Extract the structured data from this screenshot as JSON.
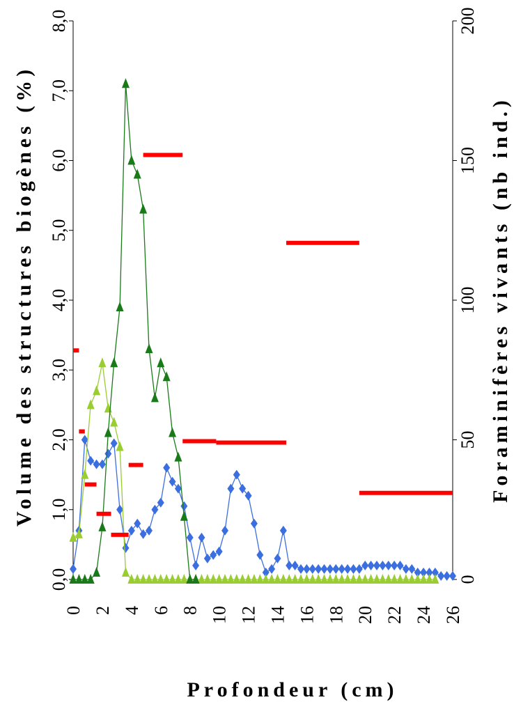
{
  "chart_data": {
    "type": "line",
    "orientation": "rotated-90-clockwise",
    "title": "",
    "x_axis": {
      "label": "Profondeur (cm)",
      "range": [
        0,
        26
      ],
      "ticks": [
        "0",
        "2",
        "4",
        "6",
        "8",
        "10",
        "12",
        "14",
        "16",
        "18",
        "20",
        "22",
        "24",
        "26"
      ]
    },
    "y_axis_left": {
      "label": "Volume des structures biogènes (%)",
      "range": [
        0,
        8
      ],
      "ticks": [
        "0,0",
        "1,0",
        "2,0",
        "3,0",
        "4,0",
        "5,0",
        "6,0",
        "7,0",
        "8,0"
      ]
    },
    "y_axis_right": {
      "label": "Foraminifères vivants (nb ind.)",
      "range": [
        0,
        200
      ],
      "ticks": [
        "0",
        "50",
        "100",
        "150",
        "200"
      ]
    },
    "series": [
      {
        "color": "#3b6fe0",
        "marker": "diamond",
        "axis": "left",
        "x": [
          0.0,
          0.4,
          0.8,
          1.2,
          1.6,
          2.0,
          2.4,
          2.8,
          3.2,
          3.6,
          4.0,
          4.4,
          4.8,
          5.2,
          5.6,
          6.0,
          6.4,
          6.8,
          7.2,
          7.6,
          8.0,
          8.4,
          8.8,
          9.2,
          9.6,
          10.0,
          10.4,
          10.8,
          11.2,
          11.6,
          12.0,
          12.4,
          12.8,
          13.2,
          13.6,
          14.0,
          14.4,
          14.8,
          15.2,
          15.6,
          16.0,
          16.4,
          16.8,
          17.2,
          17.6,
          18.0,
          18.4,
          18.8,
          19.2,
          19.6,
          20.0,
          20.4,
          20.8,
          21.2,
          21.6,
          22.0,
          22.4,
          22.8,
          23.2,
          23.6,
          24.0,
          24.4,
          24.8,
          25.2,
          25.6,
          26.0
        ],
        "values": [
          0.15,
          0.7,
          2.0,
          1.7,
          1.65,
          1.65,
          1.8,
          1.95,
          1.0,
          0.45,
          0.7,
          0.8,
          0.65,
          0.7,
          1.0,
          1.1,
          1.6,
          1.4,
          1.3,
          1.05,
          0.6,
          0.2,
          0.6,
          0.3,
          0.35,
          0.4,
          0.7,
          1.3,
          1.5,
          1.3,
          1.2,
          0.8,
          0.35,
          0.1,
          0.15,
          0.3,
          0.7,
          0.2,
          0.2,
          0.15,
          0.15,
          0.15,
          0.15,
          0.15,
          0.15,
          0.15,
          0.15,
          0.15,
          0.15,
          0.15,
          0.2,
          0.2,
          0.2,
          0.2,
          0.2,
          0.2,
          0.2,
          0.15,
          0.15,
          0.1,
          0.1,
          0.1,
          0.1,
          0.05,
          0.05,
          0.05
        ]
      },
      {
        "color": "#9acd32",
        "marker": "triangle",
        "axis": "left",
        "x": [
          0.0,
          0.4,
          0.8,
          1.2,
          1.6,
          2.0,
          2.4,
          2.8,
          3.2,
          3.6,
          4.0,
          4.4,
          4.8,
          5.2,
          5.6,
          6.0,
          6.4,
          6.8,
          7.2,
          7.6,
          8.0,
          8.4,
          8.8,
          9.2,
          9.6,
          10.0,
          10.4,
          10.8,
          11.2,
          11.6,
          12.0,
          12.4,
          12.8,
          13.2,
          13.6,
          14.0,
          14.4,
          14.8,
          15.2,
          15.6,
          16.0,
          16.4,
          16.8,
          17.2,
          17.6,
          18.0,
          18.4,
          18.8,
          19.2,
          19.6,
          20.0,
          20.4,
          20.8,
          21.2,
          21.6,
          22.0,
          22.4,
          22.8,
          23.2,
          23.6,
          24.0,
          24.4,
          24.8
        ],
        "values": [
          0.6,
          0.65,
          1.5,
          2.5,
          2.7,
          3.1,
          2.45,
          2.25,
          1.9,
          0.1,
          0.0,
          0.0,
          0.0,
          0.0,
          0.0,
          0.0,
          0.0,
          0.0,
          0.0,
          0.0,
          0.0,
          0.0,
          0.0,
          0.0,
          0.0,
          0.0,
          0.0,
          0.0,
          0.0,
          0.0,
          0.0,
          0.0,
          0.0,
          0.0,
          0.0,
          0.0,
          0.0,
          0.0,
          0.0,
          0.0,
          0.0,
          0.0,
          0.0,
          0.0,
          0.0,
          0.0,
          0.0,
          0.0,
          0.0,
          0.0,
          0.0,
          0.0,
          0.0,
          0.0,
          0.0,
          0.0,
          0.0,
          0.0,
          0.0,
          0.0,
          0.0,
          0.0,
          0.0
        ]
      },
      {
        "color": "#1a7a1a",
        "marker": "triangle",
        "axis": "left",
        "x": [
          0.0,
          0.4,
          0.8,
          1.2,
          1.6,
          2.0,
          2.4,
          2.8,
          3.2,
          3.6,
          4.0,
          4.4,
          4.8,
          5.2,
          5.6,
          6.0,
          6.4,
          6.8,
          7.2,
          7.6,
          8.0,
          8.4
        ],
        "values": [
          0.0,
          0.0,
          0.0,
          0.0,
          0.1,
          0.75,
          2.1,
          3.1,
          3.9,
          7.1,
          6.0,
          5.8,
          5.3,
          3.3,
          2.6,
          3.1,
          2.9,
          2.1,
          1.75,
          0.9,
          0.0,
          0.0
        ]
      },
      {
        "color": "#ff0000",
        "marker": "step",
        "axis": "right",
        "segments": [
          {
            "x0": 0.0,
            "x1": 0.4,
            "value": 82
          },
          {
            "x0": 0.4,
            "x1": 0.8,
            "value": 53
          },
          {
            "x0": 0.8,
            "x1": 1.6,
            "value": 34
          },
          {
            "x0": 1.6,
            "x1": 2.6,
            "value": 23.5
          },
          {
            "x0": 2.6,
            "x1": 3.8,
            "value": 16
          },
          {
            "x0": 3.8,
            "x1": 4.8,
            "value": 41
          },
          {
            "x0": 4.8,
            "x1": 7.5,
            "value": 152
          },
          {
            "x0": 7.5,
            "x1": 9.8,
            "value": 49.5
          },
          {
            "x0": 9.8,
            "x1": 14.6,
            "value": 49
          },
          {
            "x0": 14.6,
            "x1": 19.6,
            "value": 120.5
          },
          {
            "x0": 19.6,
            "x1": 26.0,
            "value": 31
          }
        ]
      }
    ]
  }
}
